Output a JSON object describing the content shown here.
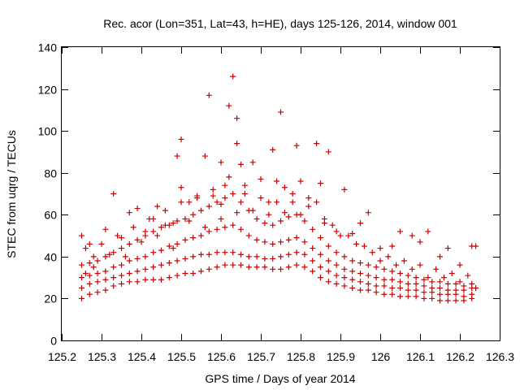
{
  "chart_data": {
    "type": "scatter",
    "title": "Rec. acor (Lon=351, Lat=43, h=HE), days 125-126, 2014, window 001",
    "xlabel": "GPS time / Days of year 2014",
    "ylabel": "STEC from uqrg / TECUs",
    "xlim": [
      125.2,
      126.3
    ],
    "ylim": [
      0,
      140
    ],
    "xticks": [
      "125.2",
      "125.3",
      "125.4",
      "125.5",
      "125.6",
      "125.7",
      "125.8",
      "125.9",
      "126",
      "126.1",
      "126.2",
      "126.3"
    ],
    "yticks": [
      "0",
      "20",
      "40",
      "60",
      "80",
      "100",
      "120",
      "140"
    ],
    "grid": false,
    "legend": "none",
    "marker": "plus",
    "color": "#cc0000",
    "series": [
      {
        "points": [
          [
            125.25,
            20
          ],
          [
            125.27,
            22
          ],
          [
            125.29,
            23
          ],
          [
            125.31,
            24
          ],
          [
            125.33,
            26
          ],
          [
            125.35,
            27
          ],
          [
            125.37,
            28
          ],
          [
            125.39,
            28
          ],
          [
            125.41,
            29
          ],
          [
            125.43,
            29
          ],
          [
            125.45,
            29
          ],
          [
            125.47,
            30
          ],
          [
            125.49,
            31
          ],
          [
            125.51,
            32
          ],
          [
            125.53,
            32
          ],
          [
            125.55,
            33
          ],
          [
            125.57,
            34
          ],
          [
            125.59,
            35
          ],
          [
            125.61,
            36
          ],
          [
            125.63,
            36
          ],
          [
            125.65,
            36
          ],
          [
            125.67,
            35
          ],
          [
            125.69,
            35
          ],
          [
            125.71,
            35
          ],
          [
            125.73,
            34
          ],
          [
            125.75,
            34
          ],
          [
            125.77,
            35
          ],
          [
            125.79,
            36
          ],
          [
            125.81,
            35
          ],
          [
            125.83,
            33
          ],
          [
            125.85,
            30
          ],
          [
            125.87,
            28
          ],
          [
            125.89,
            27
          ],
          [
            125.91,
            26
          ],
          [
            125.93,
            25
          ],
          [
            125.95,
            24
          ],
          [
            125.97,
            24
          ],
          [
            125.99,
            23
          ],
          [
            126.01,
            22
          ],
          [
            126.03,
            22
          ],
          [
            126.05,
            21
          ],
          [
            126.07,
            21
          ],
          [
            126.09,
            21
          ],
          [
            126.11,
            20
          ],
          [
            126.13,
            20
          ],
          [
            126.15,
            19
          ],
          [
            126.17,
            19
          ],
          [
            126.19,
            19
          ],
          [
            126.21,
            19
          ],
          [
            126.23,
            20
          ],
          [
            125.25,
            25
          ],
          [
            125.27,
            27
          ],
          [
            125.29,
            28
          ],
          [
            125.31,
            29
          ],
          [
            125.33,
            30
          ],
          [
            125.35,
            31
          ],
          [
            125.37,
            32
          ],
          [
            125.39,
            33
          ],
          [
            125.41,
            34
          ],
          [
            125.43,
            35
          ],
          [
            125.45,
            36
          ],
          [
            125.47,
            37
          ],
          [
            125.49,
            38
          ],
          [
            125.51,
            39
          ],
          [
            125.53,
            40
          ],
          [
            125.55,
            41
          ],
          [
            125.57,
            41
          ],
          [
            125.59,
            42
          ],
          [
            125.61,
            42
          ],
          [
            125.63,
            42
          ],
          [
            125.65,
            41
          ],
          [
            125.67,
            40
          ],
          [
            125.69,
            40
          ],
          [
            125.71,
            39
          ],
          [
            125.73,
            39
          ],
          [
            125.75,
            40
          ],
          [
            125.77,
            41
          ],
          [
            125.79,
            42
          ],
          [
            125.81,
            41
          ],
          [
            125.83,
            38
          ],
          [
            125.85,
            35
          ],
          [
            125.87,
            33
          ],
          [
            125.89,
            31
          ],
          [
            125.91,
            30
          ],
          [
            125.93,
            29
          ],
          [
            125.95,
            28
          ],
          [
            125.97,
            27
          ],
          [
            125.99,
            26
          ],
          [
            126.01,
            26
          ],
          [
            126.03,
            25
          ],
          [
            126.05,
            25
          ],
          [
            126.07,
            24
          ],
          [
            126.09,
            24
          ],
          [
            126.11,
            23
          ],
          [
            126.13,
            23
          ],
          [
            126.15,
            22
          ],
          [
            126.17,
            22
          ],
          [
            126.19,
            22
          ],
          [
            126.21,
            21
          ],
          [
            126.23,
            22
          ],
          [
            125.25,
            30
          ],
          [
            125.27,
            31
          ],
          [
            125.29,
            32
          ],
          [
            125.31,
            33
          ],
          [
            125.33,
            35
          ],
          [
            125.35,
            36
          ],
          [
            125.37,
            38
          ],
          [
            125.39,
            39
          ],
          [
            125.41,
            40
          ],
          [
            125.43,
            42
          ],
          [
            125.45,
            43
          ],
          [
            125.47,
            45
          ],
          [
            125.49,
            46
          ],
          [
            125.51,
            48
          ],
          [
            125.53,
            49
          ],
          [
            125.55,
            50
          ],
          [
            125.57,
            52
          ],
          [
            125.59,
            53
          ],
          [
            125.61,
            54
          ],
          [
            125.63,
            55
          ],
          [
            125.65,
            53
          ],
          [
            125.67,
            50
          ],
          [
            125.69,
            48
          ],
          [
            125.71,
            47
          ],
          [
            125.73,
            46
          ],
          [
            125.75,
            47
          ],
          [
            125.77,
            48
          ],
          [
            125.79,
            49
          ],
          [
            125.81,
            47
          ],
          [
            125.83,
            44
          ],
          [
            125.85,
            41
          ],
          [
            125.87,
            38
          ],
          [
            125.89,
            36
          ],
          [
            125.91,
            34
          ],
          [
            125.93,
            33
          ],
          [
            125.95,
            32
          ],
          [
            125.97,
            31
          ],
          [
            125.99,
            30
          ],
          [
            126.01,
            29
          ],
          [
            126.03,
            29
          ],
          [
            126.05,
            28
          ],
          [
            126.07,
            27
          ],
          [
            126.09,
            27
          ],
          [
            126.11,
            26
          ],
          [
            126.13,
            25
          ],
          [
            126.15,
            25
          ],
          [
            126.17,
            24
          ],
          [
            126.19,
            24
          ],
          [
            126.21,
            24
          ],
          [
            126.23,
            25
          ],
          [
            125.25,
            36
          ],
          [
            125.27,
            37
          ],
          [
            125.29,
            38
          ],
          [
            125.31,
            40
          ],
          [
            125.33,
            42
          ],
          [
            125.35,
            44
          ],
          [
            125.37,
            46
          ],
          [
            125.39,
            48
          ],
          [
            125.41,
            50
          ],
          [
            125.43,
            52
          ],
          [
            125.45,
            54
          ],
          [
            125.47,
            55
          ],
          [
            125.49,
            57
          ],
          [
            125.51,
            58
          ],
          [
            125.53,
            60
          ],
          [
            125.55,
            62
          ],
          [
            125.57,
            64
          ],
          [
            125.59,
            66
          ],
          [
            125.61,
            68
          ],
          [
            125.63,
            70
          ],
          [
            125.65,
            66
          ],
          [
            125.67,
            62
          ],
          [
            125.69,
            58
          ],
          [
            125.71,
            56
          ],
          [
            125.73,
            55
          ],
          [
            125.75,
            57
          ],
          [
            125.77,
            59
          ],
          [
            125.79,
            60
          ],
          [
            125.81,
            57
          ],
          [
            125.83,
            53
          ],
          [
            125.85,
            49
          ],
          [
            125.87,
            45
          ],
          [
            125.89,
            42
          ],
          [
            125.91,
            40
          ],
          [
            125.93,
            38
          ],
          [
            125.95,
            37
          ],
          [
            125.97,
            36
          ],
          [
            125.99,
            35
          ],
          [
            126.01,
            34
          ],
          [
            126.03,
            33
          ],
          [
            126.05,
            32
          ],
          [
            126.07,
            31
          ],
          [
            126.09,
            30
          ],
          [
            126.11,
            29
          ],
          [
            126.13,
            28
          ],
          [
            126.15,
            28
          ],
          [
            126.17,
            27
          ],
          [
            126.19,
            27
          ],
          [
            126.21,
            26
          ],
          [
            126.23,
            27
          ],
          [
            125.26,
            44
          ],
          [
            125.3,
            46
          ],
          [
            125.34,
            50
          ],
          [
            125.38,
            54
          ],
          [
            125.42,
            58
          ],
          [
            125.46,
            62
          ],
          [
            125.5,
            66
          ],
          [
            125.54,
            68
          ],
          [
            125.58,
            72
          ],
          [
            125.62,
            78
          ],
          [
            125.66,
            74
          ],
          [
            125.7,
            68
          ],
          [
            125.74,
            66
          ],
          [
            125.78,
            70
          ],
          [
            125.82,
            64
          ],
          [
            125.86,
            56
          ],
          [
            125.9,
            50
          ],
          [
            125.94,
            46
          ],
          [
            125.98,
            42
          ],
          [
            126.02,
            40
          ],
          [
            126.06,
            38
          ],
          [
            126.1,
            36
          ],
          [
            126.14,
            34
          ],
          [
            126.18,
            32
          ],
          [
            126.22,
            31
          ],
          [
            125.25,
            50
          ],
          [
            125.27,
            46
          ],
          [
            125.28,
            40
          ],
          [
            125.31,
            53
          ],
          [
            125.33,
            70
          ],
          [
            125.35,
            49
          ],
          [
            125.37,
            61
          ],
          [
            125.39,
            63
          ],
          [
            125.41,
            52
          ],
          [
            125.43,
            58
          ],
          [
            125.44,
            64
          ],
          [
            125.46,
            55
          ],
          [
            125.48,
            56
          ],
          [
            125.49,
            88
          ],
          [
            125.5,
            73
          ],
          [
            125.5,
            96
          ],
          [
            125.52,
            66
          ],
          [
            125.54,
            69
          ],
          [
            125.56,
            88
          ],
          [
            125.57,
            117
          ],
          [
            125.58,
            69
          ],
          [
            125.6,
            65
          ],
          [
            125.6,
            85
          ],
          [
            125.61,
            74
          ],
          [
            125.62,
            112
          ],
          [
            125.63,
            126
          ],
          [
            125.64,
            94
          ],
          [
            125.64,
            106
          ],
          [
            125.65,
            84
          ],
          [
            125.66,
            70
          ],
          [
            125.68,
            85
          ],
          [
            125.7,
            77
          ],
          [
            125.72,
            60
          ],
          [
            125.73,
            91
          ],
          [
            125.74,
            76
          ],
          [
            125.75,
            109
          ],
          [
            125.76,
            73
          ],
          [
            125.78,
            66
          ],
          [
            125.79,
            93
          ],
          [
            125.8,
            76
          ],
          [
            125.82,
            68
          ],
          [
            125.84,
            94
          ],
          [
            125.85,
            75
          ],
          [
            125.86,
            58
          ],
          [
            125.87,
            90
          ],
          [
            125.89,
            52
          ],
          [
            125.91,
            72
          ],
          [
            125.93,
            51
          ],
          [
            125.95,
            56
          ],
          [
            125.97,
            61
          ],
          [
            126.0,
            44
          ],
          [
            126.03,
            45
          ],
          [
            126.05,
            52
          ],
          [
            126.08,
            50
          ],
          [
            126.1,
            47
          ],
          [
            126.12,
            52
          ],
          [
            126.15,
            40
          ],
          [
            126.17,
            44
          ],
          [
            126.2,
            36
          ],
          [
            126.23,
            45
          ],
          [
            126.24,
            45
          ],
          [
            125.26,
            32
          ],
          [
            125.28,
            35
          ],
          [
            125.32,
            41
          ],
          [
            125.36,
            40
          ],
          [
            125.4,
            47
          ],
          [
            125.44,
            50
          ],
          [
            125.48,
            44
          ],
          [
            125.52,
            57
          ],
          [
            125.56,
            54
          ],
          [
            125.6,
            58
          ],
          [
            125.64,
            61
          ],
          [
            125.68,
            62
          ],
          [
            125.72,
            66
          ],
          [
            125.76,
            61
          ],
          [
            125.8,
            60
          ],
          [
            125.84,
            66
          ],
          [
            125.88,
            55
          ],
          [
            125.92,
            50
          ],
          [
            125.96,
            45
          ],
          [
            126.0,
            38
          ],
          [
            126.04,
            36
          ],
          [
            126.08,
            34
          ],
          [
            126.12,
            30
          ],
          [
            126.16,
            30
          ],
          [
            126.2,
            28
          ],
          [
            126.24,
            25
          ]
        ]
      }
    ]
  }
}
